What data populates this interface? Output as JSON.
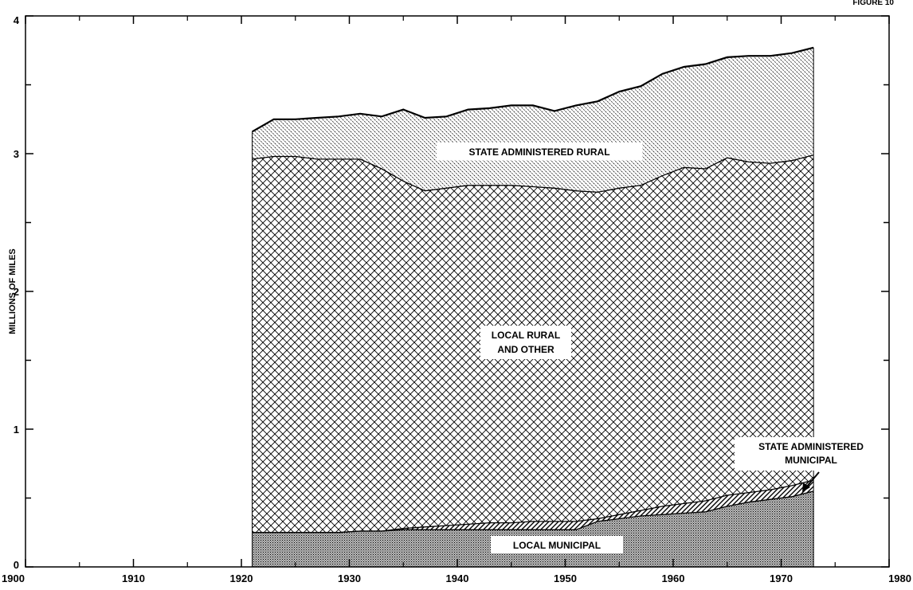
{
  "figure_label": "FIGURE 10",
  "chart_data": {
    "type": "area",
    "stacked": true,
    "title": "",
    "xlabel": "",
    "ylabel": "MILLIONS OF MILES",
    "xlim": [
      1900,
      1980
    ],
    "ylim": [
      0,
      4
    ],
    "xticks": [
      1900,
      1910,
      1920,
      1930,
      1940,
      1950,
      1960,
      1970,
      1980
    ],
    "yticks": [
      0,
      1,
      2,
      3,
      4
    ],
    "x": [
      1921,
      1923,
      1925,
      1927,
      1929,
      1931,
      1933,
      1935,
      1937,
      1939,
      1941,
      1943,
      1945,
      1947,
      1949,
      1951,
      1953,
      1955,
      1957,
      1959,
      1961,
      1963,
      1965,
      1967,
      1969,
      1971,
      1973
    ],
    "series": [
      {
        "name": "LOCAL MUNICIPAL",
        "pattern": "stipple",
        "values": [
          0.25,
          0.25,
          0.25,
          0.25,
          0.25,
          0.26,
          0.26,
          0.27,
          0.27,
          0.27,
          0.27,
          0.27,
          0.27,
          0.27,
          0.27,
          0.27,
          0.33,
          0.35,
          0.37,
          0.38,
          0.39,
          0.4,
          0.44,
          0.47,
          0.49,
          0.51,
          0.55
        ]
      },
      {
        "name": "STATE ADMINISTERED MUNICIPAL",
        "pattern": "diagonal-hatch",
        "values": [
          0.0,
          0.0,
          0.0,
          0.0,
          0.0,
          0.0,
          0.0,
          0.01,
          0.02,
          0.03,
          0.04,
          0.05,
          0.05,
          0.06,
          0.06,
          0.06,
          0.02,
          0.03,
          0.04,
          0.06,
          0.07,
          0.08,
          0.08,
          0.07,
          0.07,
          0.08,
          0.08
        ]
      },
      {
        "name": "LOCAL RURAL AND OTHER",
        "pattern": "crosshatch",
        "values": [
          2.71,
          2.73,
          2.73,
          2.71,
          2.71,
          2.7,
          2.63,
          2.52,
          2.44,
          2.45,
          2.46,
          2.45,
          2.45,
          2.43,
          2.42,
          2.4,
          2.37,
          2.37,
          2.36,
          2.4,
          2.44,
          2.41,
          2.45,
          2.4,
          2.37,
          2.36,
          2.36
        ]
      },
      {
        "name": "STATE ADMINISTERED RURAL",
        "pattern": "fine-hatch",
        "values": [
          0.2,
          0.27,
          0.27,
          0.3,
          0.31,
          0.33,
          0.38,
          0.52,
          0.53,
          0.52,
          0.55,
          0.56,
          0.58,
          0.59,
          0.56,
          0.62,
          0.66,
          0.7,
          0.72,
          0.74,
          0.73,
          0.76,
          0.73,
          0.77,
          0.78,
          0.78,
          0.78
        ]
      }
    ],
    "labels": {
      "state_rural": "STATE ADMINISTERED RURAL",
      "local_rural_line1": "LOCAL RURAL",
      "local_rural_line2": "AND OTHER",
      "state_municipal_line1": "STATE ADMINISTERED",
      "state_municipal_line2": "MUNICIPAL",
      "local_municipal": "LOCAL MUNICIPAL"
    },
    "grid": false
  }
}
